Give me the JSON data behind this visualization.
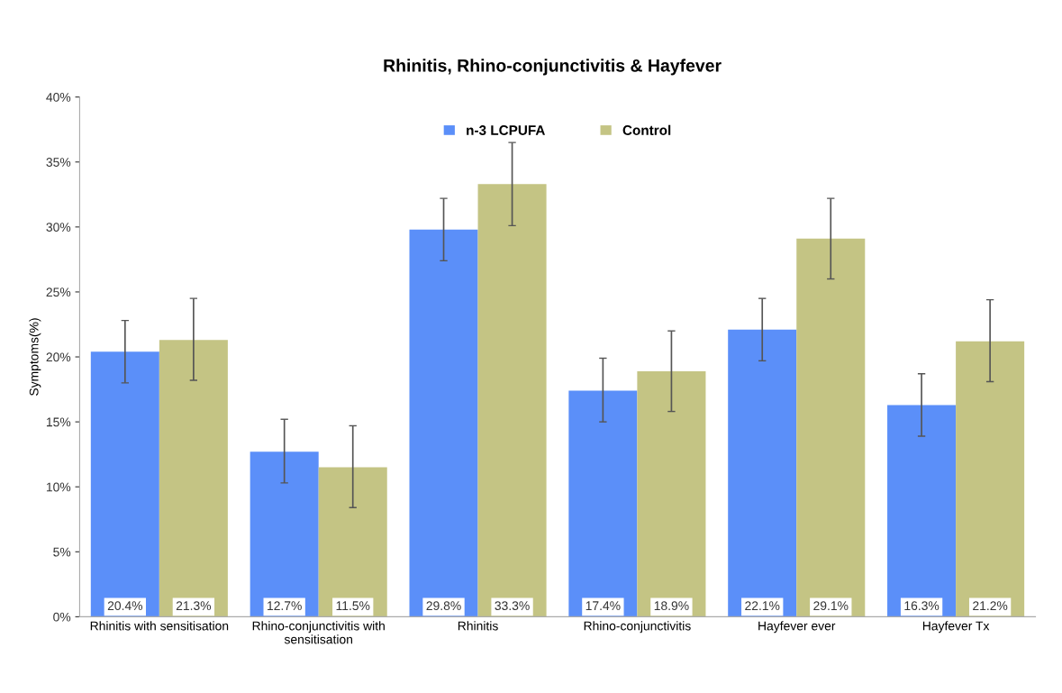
{
  "chart_data": {
    "type": "bar",
    "title": "Rhinitis, Rhino-conjunctivitis & Hayfever",
    "ylabel": "Symptoms(%)",
    "categories": [
      "Rhinitis with sensitisation",
      "Rhino-conjunctivitis with sensitisation",
      "Rhinitis",
      "Rhino-conjunctivitis",
      "Hayfever ever",
      "Hayfever Tx"
    ],
    "series": [
      {
        "name": "n-3 LCPUFA",
        "color": "#5b8ff9",
        "values": [
          20.4,
          12.7,
          29.8,
          17.4,
          22.1,
          16.3
        ],
        "value_labels": [
          "20.4%",
          "12.7%",
          "29.8%",
          "17.4%",
          "22.1%",
          "16.3%"
        ],
        "errors": [
          [
            18.0,
            22.8
          ],
          [
            10.3,
            15.2
          ],
          [
            27.4,
            32.2
          ],
          [
            15.0,
            19.9
          ],
          [
            19.7,
            24.5
          ],
          [
            13.9,
            18.7
          ]
        ]
      },
      {
        "name": "Control",
        "color": "#c4c484",
        "values": [
          21.3,
          11.5,
          33.3,
          18.9,
          29.1,
          21.2
        ],
        "value_labels": [
          "21.3%",
          "11.5%",
          "33.3%",
          "18.9%",
          "29.1%",
          "21.2%"
        ],
        "errors": [
          [
            18.2,
            24.5
          ],
          [
            8.4,
            14.7
          ],
          [
            30.1,
            36.5
          ],
          [
            15.8,
            22.0
          ],
          [
            26.0,
            32.2
          ],
          [
            18.1,
            24.4
          ]
        ]
      }
    ],
    "ylim": [
      0,
      40
    ],
    "yticks": [
      {
        "value": 0,
        "label": "0%"
      },
      {
        "value": 5,
        "label": "5%"
      },
      {
        "value": 10,
        "label": "10%"
      },
      {
        "value": 15,
        "label": "15%"
      },
      {
        "value": 20,
        "label": "20%"
      },
      {
        "value": 25,
        "label": "25%"
      },
      {
        "value": 30,
        "label": "30%"
      },
      {
        "value": 35,
        "label": "35%"
      },
      {
        "value": 40,
        "label": "40%"
      }
    ],
    "grid": false,
    "legend": "top"
  }
}
